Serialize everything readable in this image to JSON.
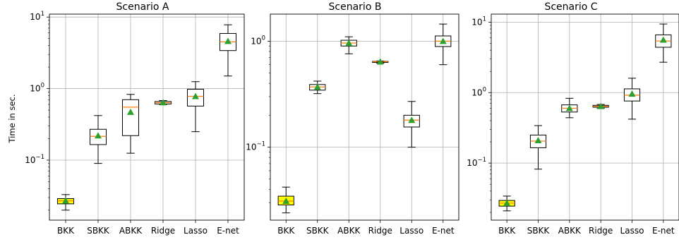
{
  "chart_data": [
    {
      "type": "box",
      "title": "Scenario A",
      "ylabel": "Time in sec.",
      "xlabel": "",
      "yscale": "log",
      "ylim": [
        0.0145,
        11
      ],
      "yticks": [
        {
          "value": 0.1,
          "base": "10",
          "exp": "−1"
        },
        {
          "value": 1,
          "base": "10",
          "exp": "0"
        },
        {
          "value": 10,
          "base": "10",
          "exp": "1"
        }
      ],
      "grid": true,
      "categories": [
        "BKK",
        "SBKK",
        "ABKK",
        "Ridge",
        "Lasso",
        "E-net"
      ],
      "boxes": [
        {
          "whislo": 0.02,
          "q1": 0.0245,
          "median": 0.027,
          "q3": 0.029,
          "whishi": 0.033,
          "mean": 0.027
        },
        {
          "whislo": 0.09,
          "q1": 0.165,
          "median": 0.215,
          "q3": 0.27,
          "whishi": 0.42,
          "mean": 0.22
        },
        {
          "whislo": 0.125,
          "q1": 0.22,
          "median": 0.55,
          "q3": 0.7,
          "whishi": 0.83,
          "mean": 0.47
        },
        {
          "whislo": 0.6,
          "q1": 0.61,
          "median": 0.635,
          "q3": 0.66,
          "whishi": 0.68,
          "mean": 0.64
        },
        {
          "whislo": 0.25,
          "q1": 0.57,
          "median": 0.78,
          "q3": 0.98,
          "whishi": 1.25,
          "mean": 0.78
        },
        {
          "whislo": 1.5,
          "q1": 3.4,
          "median": 4.5,
          "q3": 5.9,
          "whishi": 7.8,
          "mean": 4.6
        }
      ]
    },
    {
      "type": "box",
      "title": "Scenario B",
      "ylabel": "",
      "xlabel": "",
      "yscale": "log",
      "ylim": [
        0.0205,
        1.8
      ],
      "yticks": [
        {
          "value": 0.1,
          "base": "10",
          "exp": "−1"
        },
        {
          "value": 1,
          "base": "10",
          "exp": "0"
        }
      ],
      "grid": true,
      "categories": [
        "BKK",
        "SBKK",
        "ABKK",
        "Ridge",
        "Lasso",
        "E-net"
      ],
      "boxes": [
        {
          "whislo": 0.024,
          "q1": 0.0285,
          "median": 0.031,
          "q3": 0.0345,
          "whishi": 0.042,
          "mean": 0.031
        },
        {
          "whislo": 0.32,
          "q1": 0.345,
          "median": 0.37,
          "q3": 0.39,
          "whishi": 0.42,
          "mean": 0.37
        },
        {
          "whislo": 0.76,
          "q1": 0.9,
          "median": 0.96,
          "q3": 1.02,
          "whishi": 1.1,
          "mean": 0.96
        },
        {
          "whislo": 0.62,
          "q1": 0.63,
          "median": 0.64,
          "q3": 0.645,
          "whishi": 0.65,
          "mean": 0.64
        },
        {
          "whislo": 0.1,
          "q1": 0.155,
          "median": 0.18,
          "q3": 0.2,
          "whishi": 0.27,
          "mean": 0.18
        },
        {
          "whislo": 0.6,
          "q1": 0.89,
          "median": 1.0,
          "q3": 1.12,
          "whishi": 1.45,
          "mean": 1.0
        }
      ]
    },
    {
      "type": "box",
      "title": "Scenario C",
      "ylabel": "",
      "xlabel": "",
      "yscale": "log",
      "ylim": [
        0.0155,
        13
      ],
      "yticks": [
        {
          "value": 0.1,
          "base": "10",
          "exp": "−1"
        },
        {
          "value": 1,
          "base": "10",
          "exp": "0"
        },
        {
          "value": 10,
          "base": "10",
          "exp": "1"
        }
      ],
      "grid": true,
      "categories": [
        "BKK",
        "SBKK",
        "ABKK",
        "Ridge",
        "Lasso",
        "E-net"
      ],
      "boxes": [
        {
          "whislo": 0.021,
          "q1": 0.0245,
          "median": 0.027,
          "q3": 0.0295,
          "whishi": 0.034,
          "mean": 0.027
        },
        {
          "whislo": 0.082,
          "q1": 0.165,
          "median": 0.205,
          "q3": 0.25,
          "whishi": 0.34,
          "mean": 0.21
        },
        {
          "whislo": 0.44,
          "q1": 0.53,
          "median": 0.6,
          "q3": 0.67,
          "whishi": 0.83,
          "mean": 0.6
        },
        {
          "whislo": 0.6,
          "q1": 0.62,
          "median": 0.64,
          "q3": 0.66,
          "whishi": 0.68,
          "mean": 0.64
        },
        {
          "whislo": 0.42,
          "q1": 0.76,
          "median": 0.92,
          "q3": 1.13,
          "whishi": 1.6,
          "mean": 0.96
        },
        {
          "whislo": 2.7,
          "q1": 4.4,
          "median": 5.4,
          "q3": 6.6,
          "whishi": 9.4,
          "mean": 5.6
        }
      ]
    }
  ],
  "colors": {
    "box_edge": "#000000",
    "median": "#ff7f0e",
    "mean_marker": "#2ca02c",
    "highlight_fill": "#ffff00",
    "grid": "#b0b0b0"
  },
  "highlight_category": "BKK"
}
